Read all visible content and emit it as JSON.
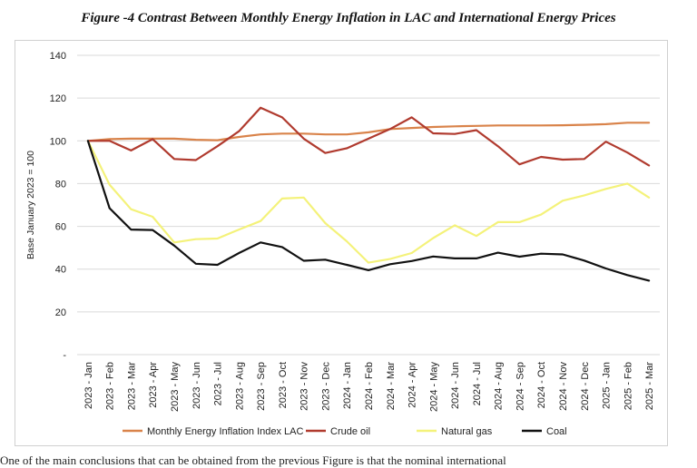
{
  "figure_title": "Figure -4 Contrast Between Monthly Energy Inflation in LAC and International Energy Prices",
  "body_text": "One of the main conclusions that can be obtained from the previous Figure is that the nominal international",
  "chart_data": {
    "type": "line",
    "ylabel": "Base January 2023 = 100",
    "ylim": [
      0,
      140
    ],
    "yticks": [
      0,
      20,
      40,
      60,
      80,
      100,
      120,
      140
    ],
    "ytick_labels": [
      "-",
      "20",
      "40",
      "60",
      "80",
      "100",
      "120",
      "140"
    ],
    "grid": true,
    "legend_position": "bottom",
    "categories": [
      "2023 - Jan",
      "2023 - Feb",
      "2023 - Mar",
      "2023 - Apr",
      "2023 - May",
      "2023 - Jun",
      "2023 - Jul",
      "2023 - Aug",
      "2023 - Sep",
      "2023 - Oct",
      "2023 - Nov",
      "2023 - Dec",
      "2024 - Jan",
      "2024 - Feb",
      "2024 - Mar",
      "2024 - Apr",
      "2024 - May",
      "2024 - Jun",
      "2024 - Jul",
      "2024 - Aug",
      "2024 - Sep",
      "2024 - Oct",
      "2024 - Nov",
      "2024 - Dec",
      "2025 - Jan",
      "2025 - Feb",
      "2025 - Mar"
    ],
    "series": [
      {
        "name": "Monthly Energy Inflation Index LAC",
        "color": "#d9834a",
        "values": [
          100,
          100.8,
          101,
          101,
          101,
          100.5,
          100.3,
          101.8,
          103,
          103.4,
          103.4,
          103,
          103,
          104,
          105.5,
          106,
          106.5,
          106.8,
          107,
          107.2,
          107.2,
          107.2,
          107.3,
          107.5,
          107.8,
          108.5,
          108.5
        ]
      },
      {
        "name": "Crude oil",
        "color": "#b03a2e",
        "values": [
          100,
          100,
          95.5,
          100.8,
          91.5,
          91,
          97.5,
          104.5,
          115.5,
          111,
          101,
          94.3,
          96.5,
          101,
          105.5,
          111,
          103.5,
          103.2,
          105,
          97.5,
          89,
          92.5,
          91.2,
          91.5,
          99.6,
          94.5,
          88.5
        ]
      },
      {
        "name": "Natural gas",
        "color": "#f4f27a",
        "values": [
          100,
          79.5,
          68,
          64.5,
          52.5,
          54,
          54.3,
          58.5,
          62.5,
          73,
          73.5,
          61.5,
          53,
          43,
          44.7,
          47.5,
          54.5,
          60.5,
          55.5,
          62,
          62,
          65.5,
          72,
          74.5,
          77.5,
          80,
          73.5
        ]
      },
      {
        "name": "Coal",
        "color": "#111111",
        "values": [
          100,
          68.5,
          58.5,
          58.3,
          51,
          42.5,
          42,
          47.5,
          52.5,
          50.3,
          43.9,
          44.4,
          42,
          39.5,
          42.3,
          43.8,
          45.9,
          45,
          45,
          47.7,
          45.8,
          47.2,
          46.9,
          44,
          40.3,
          37.2,
          34.6
        ]
      }
    ]
  }
}
